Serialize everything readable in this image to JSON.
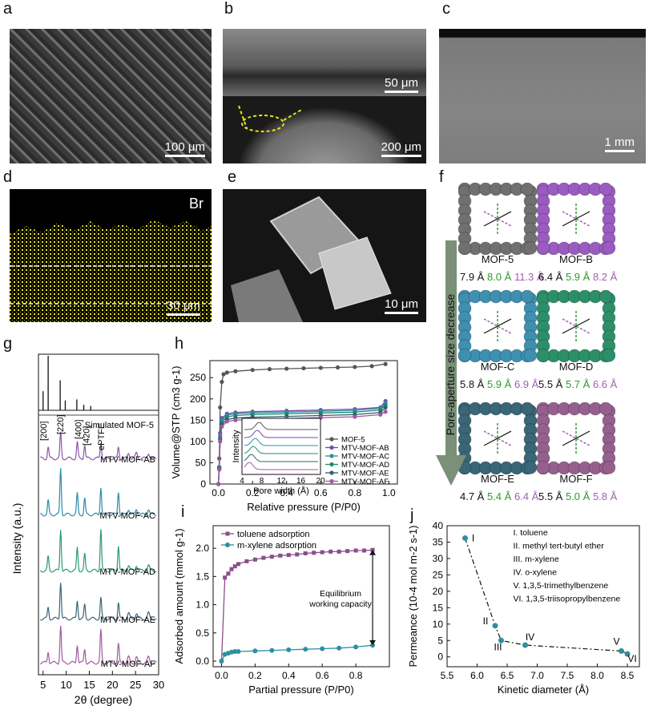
{
  "panel_letters": {
    "a": "a",
    "b": "b",
    "c": "c",
    "d": "d",
    "e": "e",
    "f": "f",
    "g": "g",
    "h": "h",
    "i": "i",
    "j": "j"
  },
  "micrographs": {
    "a_scale": "100 μm",
    "b_scale_top": "50 μm",
    "b_scale_bottom": "200 μm",
    "c_scale": "1 mm",
    "d_label": "Br",
    "d_scale": "30 μm",
    "e_scale": "10 μm"
  },
  "panel_f": {
    "arrow_label": "Pore-aperture size decrease",
    "mofs": [
      {
        "name": "MOF-5",
        "s1": "7.9 Å",
        "s2": "8.0 Å",
        "s3": "11.3 Å",
        "color": "#707070"
      },
      {
        "name": "MOF-B",
        "s1": "6.4 Å",
        "s2": "5.9 Å",
        "s3": "8.2 Å",
        "color": "#9a5cc0"
      },
      {
        "name": "MOF-C",
        "s1": "5.8 Å",
        "s2": "5.9 Å",
        "s3": "6.9 Å",
        "color": "#3f8fb0"
      },
      {
        "name": "MOF-D",
        "s1": "5.5 Å",
        "s2": "5.7 Å",
        "s3": "6.6 Å",
        "color": "#2d8f6a"
      },
      {
        "name": "MOF-E",
        "s1": "4.7 Å",
        "s2": "5.4 Å",
        "s3": "6.4 Å",
        "color": "#3a6677"
      },
      {
        "name": "MOF-F",
        "s1": "5.5 Å",
        "s2": "5.0 Å",
        "s3": "5.8 Å",
        "color": "#95608e"
      }
    ]
  },
  "panel_g": {
    "xlabel": "2θ (degree)",
    "ylabel": "Intensity (a.u.)",
    "x_ticks": [
      "5",
      "10",
      "15",
      "20",
      "25",
      "30"
    ],
    "peaks": [
      "[200]",
      "[220]",
      "[400]",
      "[420]",
      "ePTFE"
    ],
    "traces": [
      "Simulated MOF-5",
      "MTV-MOF-AB",
      "MTV-MOF-AC",
      "MTV-MOF-AD",
      "MTV-MOF-AE",
      "MTV-MOF-AF"
    ]
  },
  "chart_data": [
    {
      "type": "line",
      "title": "h",
      "xlabel": "Relative pressure (P/P0)",
      "ylabel": "Volume@STP (cm3 g-1)",
      "xlim": [
        -0.05,
        1.05
      ],
      "ylim": [
        0,
        290
      ],
      "x_ticks": [
        "0.0",
        "0.2",
        "0.4",
        "0.6",
        "0.8",
        "1.0"
      ],
      "y_ticks": [
        "0",
        "50",
        "100",
        "150",
        "200",
        "250"
      ],
      "series": [
        {
          "name": "MOF-5",
          "color": "#555555",
          "x": [
            0,
            0.005,
            0.01,
            0.02,
            0.03,
            0.05,
            0.1,
            0.2,
            0.3,
            0.4,
            0.5,
            0.6,
            0.7,
            0.8,
            0.9,
            0.98
          ],
          "y": [
            0,
            60,
            180,
            240,
            258,
            262,
            265,
            268,
            270,
            271,
            272,
            273,
            274,
            275,
            277,
            282
          ]
        },
        {
          "name": "MTV-MOF-AB",
          "color": "#7a4aa8",
          "x": [
            0,
            0.005,
            0.01,
            0.02,
            0.05,
            0.1,
            0.2,
            0.4,
            0.6,
            0.8,
            0.95,
            0.98
          ],
          "y": [
            0,
            40,
            120,
            155,
            165,
            168,
            170,
            172,
            174,
            176,
            180,
            195
          ]
        },
        {
          "name": "MTV-MOF-AC",
          "color": "#2d8fa8",
          "x": [
            0,
            0.005,
            0.01,
            0.02,
            0.05,
            0.1,
            0.2,
            0.4,
            0.6,
            0.8,
            0.95,
            0.98
          ],
          "y": [
            0,
            40,
            115,
            150,
            162,
            165,
            167,
            169,
            171,
            173,
            178,
            190
          ]
        },
        {
          "name": "MTV-MOF-AD",
          "color": "#1f8a6a",
          "x": [
            0,
            0.005,
            0.01,
            0.02,
            0.05,
            0.1,
            0.2,
            0.4,
            0.6,
            0.8,
            0.95,
            0.98
          ],
          "y": [
            0,
            38,
            110,
            145,
            158,
            161,
            163,
            165,
            167,
            169,
            174,
            186
          ]
        },
        {
          "name": "MTV-MOF-AE",
          "color": "#2e5f6e",
          "x": [
            0,
            0.005,
            0.01,
            0.02,
            0.05,
            0.1,
            0.2,
            0.4,
            0.6,
            0.8,
            0.95,
            0.98
          ],
          "y": [
            0,
            36,
            105,
            140,
            152,
            155,
            157,
            159,
            161,
            163,
            168,
            180
          ]
        },
        {
          "name": "MTV-MOF-AF",
          "color": "#a05aa0",
          "x": [
            0,
            0.005,
            0.01,
            0.02,
            0.05,
            0.1,
            0.2,
            0.4,
            0.6,
            0.8,
            0.95,
            0.98
          ],
          "y": [
            0,
            34,
            100,
            135,
            147,
            150,
            152,
            154,
            156,
            158,
            163,
            170
          ]
        }
      ],
      "inset": {
        "xlabel": "Pore width (Å)",
        "ylabel": "Intensity",
        "x_ticks": [
          "4",
          "8",
          "12",
          "16",
          "20"
        ],
        "xlim": [
          4,
          20
        ]
      }
    },
    {
      "type": "line",
      "title": "i",
      "xlabel": "Partial pressure (P/P0)",
      "ylabel": "Adsorbed amount (mmol g-1)",
      "xlim": [
        -0.05,
        1.0
      ],
      "ylim": [
        -0.1,
        2.4
      ],
      "x_ticks": [
        "0.0",
        "0.2",
        "0.4",
        "0.6",
        "0.8"
      ],
      "y_ticks": [
        "0.0",
        "0.5",
        "1.0",
        "1.5",
        "2.0"
      ],
      "annotation": "Equilibrium working capacity",
      "series": [
        {
          "name": "toluene adsorption",
          "color": "#8a4f8a",
          "marker": "square",
          "x": [
            0,
            0.02,
            0.04,
            0.06,
            0.08,
            0.1,
            0.15,
            0.2,
            0.25,
            0.3,
            0.35,
            0.4,
            0.45,
            0.5,
            0.55,
            0.6,
            0.65,
            0.7,
            0.75,
            0.8,
            0.85,
            0.9
          ],
          "y": [
            0,
            1.48,
            1.55,
            1.63,
            1.68,
            1.72,
            1.77,
            1.8,
            1.83,
            1.85,
            1.87,
            1.88,
            1.89,
            1.91,
            1.92,
            1.93,
            1.94,
            1.94,
            1.95,
            1.96,
            1.96,
            1.97
          ]
        },
        {
          "name": "m-xylene adsorption",
          "color": "#2d8fa0",
          "marker": "circle",
          "x": [
            0,
            0.02,
            0.04,
            0.06,
            0.08,
            0.1,
            0.2,
            0.3,
            0.4,
            0.5,
            0.6,
            0.7,
            0.8,
            0.9
          ],
          "y": [
            0,
            0.12,
            0.14,
            0.16,
            0.17,
            0.17,
            0.18,
            0.19,
            0.2,
            0.21,
            0.22,
            0.23,
            0.25,
            0.28
          ]
        }
      ]
    },
    {
      "type": "line",
      "title": "j",
      "xlabel": "Kinetic diameter (Å)",
      "ylabel": "Permeance (10-4 mol m-2 s-1)",
      "xlim": [
        5.5,
        8.7
      ],
      "ylim": [
        -3,
        40
      ],
      "x_ticks": [
        "5.5",
        "6.0",
        "6.5",
        "7.0",
        "7.5",
        "8.0",
        "8.5"
      ],
      "y_ticks": [
        "0",
        "5",
        "10",
        "15",
        "20",
        "25",
        "30",
        "35",
        "40"
      ],
      "series": [
        {
          "name": "",
          "color": "#2d8fa0",
          "x": [
            5.8,
            6.3,
            6.4,
            6.8,
            8.4,
            8.5
          ],
          "y": [
            36.2,
            9.5,
            5.0,
            3.6,
            1.8,
            0.9
          ],
          "labels": [
            "I",
            "II",
            "III",
            "IV",
            "V",
            "VI"
          ]
        }
      ],
      "legend_items": [
        "I. toluene",
        "II. methyl tert-butyl ether",
        "III. m-xylene",
        "IV. o-xylene",
        "V. 1,3,5-trimethylbenzene",
        "VI. 1,3,5-triisopropylbenzene"
      ]
    }
  ]
}
